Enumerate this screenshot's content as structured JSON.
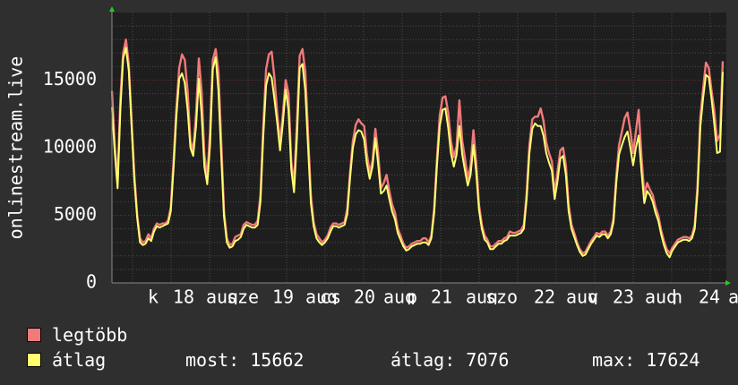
{
  "chart_data": {
    "type": "line",
    "ylabel": "onlinestream.live",
    "ylim": [
      0,
      20000
    ],
    "yticks": [
      0,
      5000,
      10000,
      15000
    ],
    "xlabels": [
      "k",
      "18",
      "aug",
      "sze",
      "19",
      "aug",
      "cs",
      "20",
      "aug",
      "p",
      "21",
      "aug",
      "szo",
      "22",
      "aug",
      "v",
      "23",
      "aug",
      "h",
      "24",
      "a"
    ],
    "grid": true,
    "series": [
      {
        "name": "legtöbb",
        "color": "#f07a7a",
        "values": [
          14200,
          10200,
          7600,
          13600,
          17000,
          18000,
          16200,
          12000,
          8000,
          5000,
          3300,
          3000,
          3100,
          3600,
          3300,
          4000,
          4400,
          4300,
          4400,
          4400,
          4600,
          5600,
          9000,
          13000,
          15900,
          16900,
          16500,
          14200,
          10500,
          9800,
          12500,
          16600,
          14200,
          9500,
          7800,
          11200,
          16500,
          17300,
          15600,
          10500,
          5300,
          3300,
          2800,
          2900,
          3400,
          3500,
          3600,
          4300,
          4500,
          4400,
          4300,
          4300,
          4600,
          6500,
          11500,
          15800,
          16900,
          17100,
          15200,
          12500,
          10400,
          12500,
          15000,
          14000,
          9000,
          7300,
          11800,
          16800,
          17300,
          15600,
          11000,
          6500,
          4500,
          3600,
          3300,
          3000,
          3200,
          3500,
          4100,
          4400,
          4400,
          4300,
          4400,
          4500,
          5500,
          8200,
          10500,
          11700,
          12100,
          11800,
          11600,
          9500,
          8200,
          9000,
          11400,
          9600,
          7000,
          7400,
          8000,
          6800,
          5800,
          5200,
          4000,
          3500,
          2900,
          2600,
          2700,
          2900,
          3000,
          3100,
          3100,
          3300,
          3300,
          3000,
          3500,
          5500,
          9200,
          12400,
          13700,
          13800,
          12600,
          10500,
          9300,
          10100,
          13500,
          10500,
          9200,
          7700,
          8700,
          11300,
          8900,
          5800,
          4300,
          3500,
          3200,
          2700,
          2700,
          2900,
          3100,
          3100,
          3300,
          3400,
          3800,
          3700,
          3700,
          3800,
          3900,
          4300,
          6600,
          10200,
          12100,
          12300,
          12300,
          12900,
          12000,
          10400,
          9600,
          9000,
          6600,
          8200,
          9800,
          10000,
          8700,
          5800,
          4300,
          3700,
          3000,
          2500,
          2200,
          2300,
          2700,
          3100,
          3400,
          3700,
          3600,
          3800,
          3800,
          3500,
          3800,
          4800,
          7900,
          10200,
          11200,
          12200,
          12600,
          11300,
          9600,
          11200,
          12800,
          9300,
          6500,
          7400,
          6900,
          6500,
          5600,
          5000,
          3900,
          3100,
          2500,
          2200,
          2600,
          2900,
          3200,
          3300,
          3400,
          3400,
          3300,
          3500,
          4300,
          7200,
          12300,
          14400,
          16300,
          15900,
          14200,
          12700,
          10500,
          11000,
          16400
        ]
      },
      {
        "name": "átlag",
        "color": "#ffff70",
        "values": [
          13000,
          9700,
          7000,
          12800,
          16600,
          17400,
          15700,
          11600,
          7600,
          4800,
          3000,
          2800,
          2900,
          3300,
          3100,
          3800,
          4200,
          4100,
          4200,
          4300,
          4400,
          5300,
          8500,
          12400,
          15100,
          15500,
          14800,
          12800,
          10000,
          9400,
          11600,
          15100,
          12500,
          8600,
          7300,
          10200,
          15800,
          16700,
          14200,
          9400,
          4900,
          3000,
          2600,
          2700,
          3100,
          3200,
          3400,
          4000,
          4300,
          4200,
          4100,
          4100,
          4300,
          6000,
          10800,
          14600,
          15500,
          15200,
          13600,
          11800,
          9800,
          11800,
          14300,
          12800,
          8400,
          6700,
          10700,
          15900,
          16200,
          14200,
          10000,
          5900,
          4200,
          3300,
          3000,
          2800,
          3000,
          3300,
          3800,
          4200,
          4200,
          4100,
          4200,
          4300,
          5100,
          7800,
          10000,
          11000,
          11300,
          11200,
          10600,
          8800,
          7700,
          8600,
          10700,
          8800,
          6600,
          6800,
          7200,
          6200,
          5300,
          4700,
          3700,
          3200,
          2700,
          2400,
          2500,
          2700,
          2800,
          2900,
          2900,
          3000,
          3000,
          2800,
          3300,
          5200,
          8700,
          11600,
          12800,
          12900,
          11500,
          9600,
          8600,
          9500,
          11600,
          9500,
          8300,
          7200,
          8000,
          10200,
          8200,
          5400,
          4000,
          3200,
          3000,
          2500,
          2500,
          2700,
          2900,
          2900,
          3100,
          3200,
          3500,
          3500,
          3500,
          3600,
          3700,
          4000,
          6200,
          9600,
          11400,
          11800,
          11600,
          11600,
          10900,
          9600,
          8900,
          8300,
          6200,
          7500,
          9200,
          9400,
          8000,
          5300,
          4000,
          3400,
          2800,
          2300,
          2000,
          2100,
          2500,
          2900,
          3200,
          3500,
          3400,
          3600,
          3600,
          3300,
          3600,
          4500,
          7400,
          9500,
          10200,
          10800,
          11200,
          10000,
          8700,
          10000,
          10900,
          8200,
          5900,
          6800,
          6500,
          6000,
          5200,
          4600,
          3600,
          2800,
          2200,
          1900,
          2400,
          2700,
          3000,
          3100,
          3200,
          3200,
          3100,
          3300,
          4000,
          6700,
          11600,
          13700,
          15400,
          15200,
          13600,
          11700,
          9600,
          9700,
          15600
        ]
      }
    ]
  },
  "legend": {
    "series1": "legtöbb",
    "series2": "átlag",
    "most_label": "most:",
    "most_value": "15662",
    "atlag_label": "átlag:",
    "atlag_value": "7076",
    "max_label": "max:",
    "max_value": "17624"
  },
  "colors": {
    "background": "#2f2f2f",
    "plot_background": "#1e1e1e",
    "grid_major": "#7a2a2a",
    "grid_minor": "#4a4a4a",
    "arrow": "#22cc22"
  }
}
